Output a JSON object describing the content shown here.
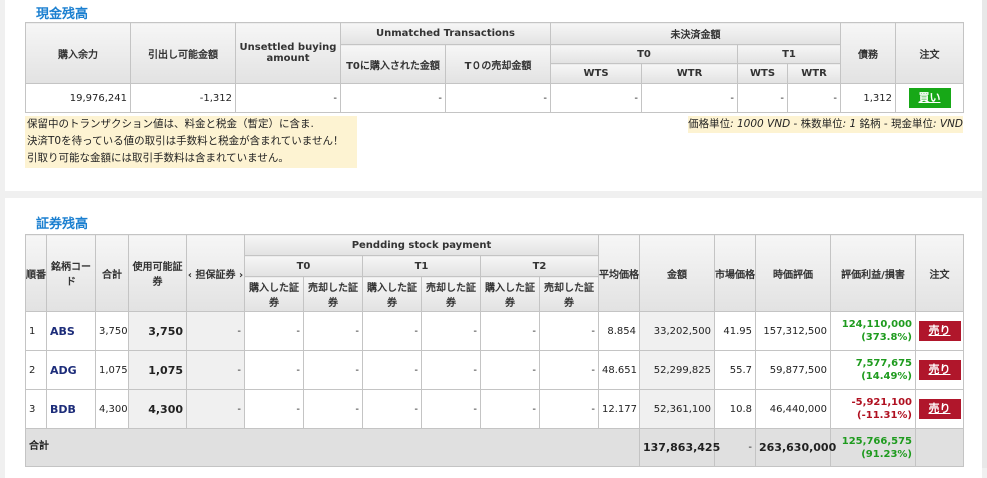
{
  "cash": {
    "title": "現金残高",
    "headers": {
      "buying_power": "購入余力",
      "withdrawable": "引出し可能金額",
      "unsettled_buying": "Unsettled buying amount",
      "unmatched": "Unmatched Transactions",
      "t0_bought": "T0に購入された金額",
      "t0_sold": "T０の売却金額",
      "unsettled": "未決済金額",
      "t0": "T0",
      "t1": "T1",
      "wts": "WTS",
      "wtr": "WTR",
      "debt": "債務",
      "order": "注文"
    },
    "row": {
      "buying_power": "19,976,241",
      "withdrawable": "-1,312",
      "unsettled_buying": "-",
      "t0_bought": "-",
      "t0_sold": "-",
      "t0_wts": "-",
      "t0_wtr": "-",
      "t1_wts": "-",
      "t1_wtr": "-",
      "debt": "1,312",
      "buy_label": "買い"
    },
    "notes": [
      "保留中のトランザクション値は、料金と税金（暫定）に含ま.",
      "決済T0を待っている値の取引は手数料と税金が含まれていません！",
      "引取り可能な金額には取引手数料は含まれていません。"
    ],
    "unit_note": {
      "l1": "価格単位",
      "v1": ": 1000 VND",
      "s1": " - 株数単位",
      "v2": ": 1 ",
      "l2": "銘柄 - 現金単位",
      "v3": ": VND"
    }
  },
  "stocks": {
    "title": "証券残高",
    "headers": {
      "no": "順番",
      "code": "銘柄コード",
      "total": "合計",
      "available": "使用可能証券",
      "collateral": "‹ 担保証券 ›",
      "pending": "Pendding stock payment",
      "t0": "T0",
      "t1": "T1",
      "t2": "T2",
      "bought": "購入した証券",
      "sold": "売却した証券",
      "avg_price": "平均価格",
      "amount": "金額",
      "market_price": "市場価格",
      "market_value": "時価評価",
      "pl": "評価利益/損害",
      "order": "注文"
    },
    "rows": [
      {
        "no": "1",
        "code": "ABS",
        "total": "3,750",
        "available": "3,750",
        "collateral": "-",
        "t0b": "-",
        "t0s": "-",
        "t1b": "-",
        "t1s": "-",
        "t2b": "-",
        "t2s": "-",
        "avg": "8.854",
        "amount": "33,202,500",
        "mkt": "41.95",
        "value": "157,312,500",
        "pl": "124,110,000",
        "pl_pct": "(373.8%)",
        "pl_sign": "pos",
        "sell": "売り"
      },
      {
        "no": "2",
        "code": "ADG",
        "total": "1,075",
        "available": "1,075",
        "collateral": "-",
        "t0b": "-",
        "t0s": "-",
        "t1b": "-",
        "t1s": "-",
        "t2b": "-",
        "t2s": "-",
        "avg": "48.651",
        "amount": "52,299,825",
        "mkt": "55.7",
        "value": "59,877,500",
        "pl": "7,577,675",
        "pl_pct": "(14.49%)",
        "pl_sign": "pos",
        "sell": "売り"
      },
      {
        "no": "3",
        "code": "BDB",
        "total": "4,300",
        "available": "4,300",
        "collateral": "-",
        "t0b": "-",
        "t0s": "-",
        "t1b": "-",
        "t1s": "-",
        "t2b": "-",
        "t2s": "-",
        "avg": "12.177",
        "amount": "52,361,100",
        "mkt": "10.8",
        "value": "46,440,000",
        "pl": "-5,921,100",
        "pl_pct": "(-11.31%)",
        "pl_sign": "neg",
        "sell": "売り"
      }
    ],
    "total": {
      "label": "合計",
      "amount": "137,863,425",
      "mkt": "-",
      "value": "263,630,000",
      "pl": "125,766,575",
      "pl_pct": "(91.23%)"
    }
  },
  "colors": {
    "accent": "#1a7fd0",
    "buy": "#17a817",
    "sell": "#b0162b",
    "positive": "#1e9b1e",
    "negative": "#b01020",
    "note_bg": "#fdf3d2"
  }
}
